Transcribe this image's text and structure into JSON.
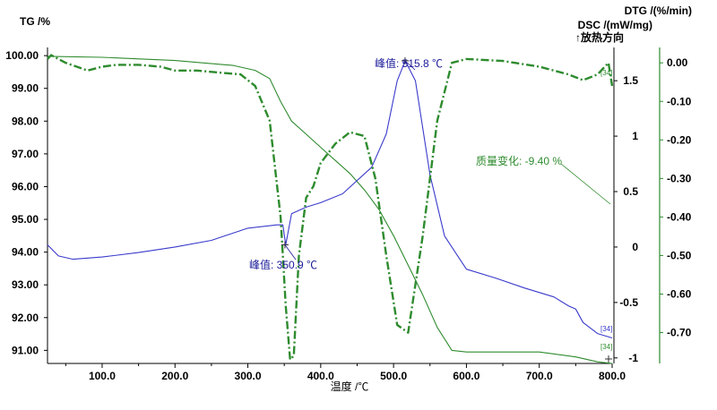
{
  "chart_data": {
    "type": "line",
    "xlabel": "温度 /℃",
    "x_ticks": [
      "100.0",
      "200.0",
      "300.0",
      "400.0",
      "500.0",
      "600.0",
      "700.0",
      "800.0"
    ],
    "xlim": [
      25,
      800
    ],
    "axes": {
      "tg": {
        "label": "TG /%",
        "ylim": [
          90.6,
          100.25
        ],
        "ticks": [
          "100.00",
          "99.00",
          "98.00",
          "97.00",
          "96.00",
          "95.00",
          "94.00",
          "93.00",
          "92.00",
          "91.00"
        ]
      },
      "dsc": {
        "label": "DSC /(mW/mg)",
        "direction": "↑放热方向",
        "ylim": [
          -1.05,
          1.8
        ],
        "ticks": [
          "1.5",
          "1",
          "0.5",
          "0",
          "-0.5",
          "-1"
        ]
      },
      "dtg": {
        "label": "DTG /(%/min)",
        "ylim": [
          -0.78,
          0.04
        ],
        "ticks": [
          "0.00",
          "-0.10",
          "-0.20",
          "-0.30",
          "-0.40",
          "-0.50",
          "-0.60",
          "-0.70"
        ]
      }
    },
    "colors": {
      "tg": "#2e8b2e",
      "dtg": "#2e8b2e",
      "dsc": "#3a3acc",
      "axis": "#000000"
    },
    "series": [
      {
        "axis": "tg",
        "style": "solid",
        "x": [
          25,
          100,
          200,
          280,
          310,
          330,
          345,
          360,
          380,
          400,
          420,
          440,
          460,
          480,
          500,
          520,
          540,
          560,
          580,
          600,
          650,
          700,
          750,
          780,
          800
        ],
        "y": [
          99.98,
          99.95,
          99.85,
          99.7,
          99.55,
          99.3,
          98.6,
          98.0,
          97.6,
          97.2,
          96.8,
          96.4,
          95.9,
          95.3,
          94.5,
          93.6,
          92.7,
          91.7,
          91.0,
          90.95,
          90.95,
          90.95,
          90.8,
          90.65,
          90.6
        ]
      },
      {
        "axis": "dsc",
        "style": "solid",
        "x": [
          25,
          40,
          60,
          100,
          150,
          200,
          250,
          300,
          340,
          348,
          352,
          360,
          380,
          400,
          430,
          470,
          490,
          505,
          516,
          530,
          550,
          570,
          600,
          640,
          680,
          720,
          740,
          750,
          760,
          780,
          800
        ],
        "y": [
          0.02,
          -0.08,
          -0.11,
          -0.09,
          -0.05,
          0.0,
          0.06,
          0.17,
          0.2,
          0.2,
          0.02,
          0.3,
          0.36,
          0.4,
          0.48,
          0.72,
          1.02,
          1.5,
          1.68,
          1.5,
          0.65,
          0.1,
          -0.2,
          -0.28,
          -0.37,
          -0.45,
          -0.53,
          -0.56,
          -0.68,
          -0.78,
          -0.82
        ]
      },
      {
        "axis": "dtg",
        "style": "dashdot",
        "x": [
          25,
          30,
          50,
          80,
          100,
          120,
          150,
          180,
          200,
          230,
          260,
          290,
          310,
          330,
          345,
          352,
          358,
          363,
          370,
          380,
          390,
          400,
          420,
          440,
          460,
          475,
          490,
          505,
          520,
          540,
          560,
          580,
          600,
          650,
          700,
          740,
          760,
          780,
          795,
          800
        ],
        "y": [
          0.01,
          0.02,
          0.0,
          -0.02,
          -0.01,
          -0.005,
          -0.005,
          -0.01,
          -0.02,
          -0.02,
          -0.025,
          -0.03,
          -0.06,
          -0.15,
          -0.4,
          -0.63,
          -0.77,
          -0.76,
          -0.5,
          -0.35,
          -0.32,
          -0.26,
          -0.21,
          -0.18,
          -0.19,
          -0.3,
          -0.5,
          -0.68,
          -0.7,
          -0.45,
          -0.15,
          0.0,
          0.01,
          0.005,
          -0.01,
          -0.03,
          -0.045,
          -0.03,
          0.0,
          -0.06
        ]
      }
    ],
    "annotations": [
      {
        "text": "峰值: 515.8 ℃",
        "x": 515.8,
        "axis": "dsc",
        "color": "#1a1a99"
      },
      {
        "text": "峰值: 350.9 ℃",
        "x": 350.9,
        "axis": "dsc",
        "color": "#1a1a99"
      },
      {
        "text": "质量变化: -9.40 %",
        "color": "#2e8b2e"
      }
    ],
    "end_markers": [
      "[34]",
      "[34]",
      "[34]"
    ]
  }
}
